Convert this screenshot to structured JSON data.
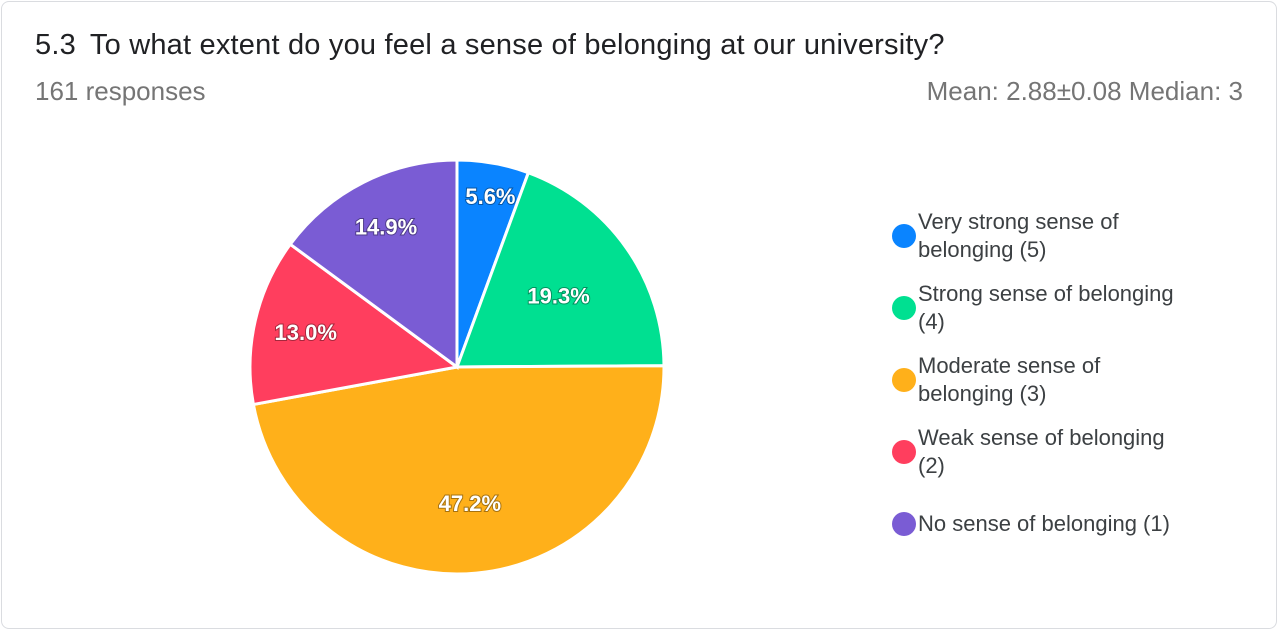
{
  "question": {
    "number": "5.3",
    "text": "To what extent do you feel a sense of belonging at our university?"
  },
  "responses_label": "161 responses",
  "stats_label": "Mean: 2.88±0.08 Median: 3",
  "chart_data": {
    "type": "pie",
    "title": "",
    "legend_position": "right",
    "categories": [
      "Very strong sense of belonging (5)",
      "Strong sense of belonging (4)",
      "Moderate sense of belonging (3)",
      "Weak sense of belonging (2)",
      "No sense of belonging (1)"
    ],
    "values": [
      5.6,
      19.3,
      47.2,
      13.0,
      14.9
    ],
    "labels": [
      "5.6%",
      "19.3%",
      "47.2%",
      "13.0%",
      "14.9%"
    ],
    "colors": [
      "#0a84ff",
      "#00e091",
      "#ffb01a",
      "#ff3e5e",
      "#7a5cd4"
    ]
  }
}
